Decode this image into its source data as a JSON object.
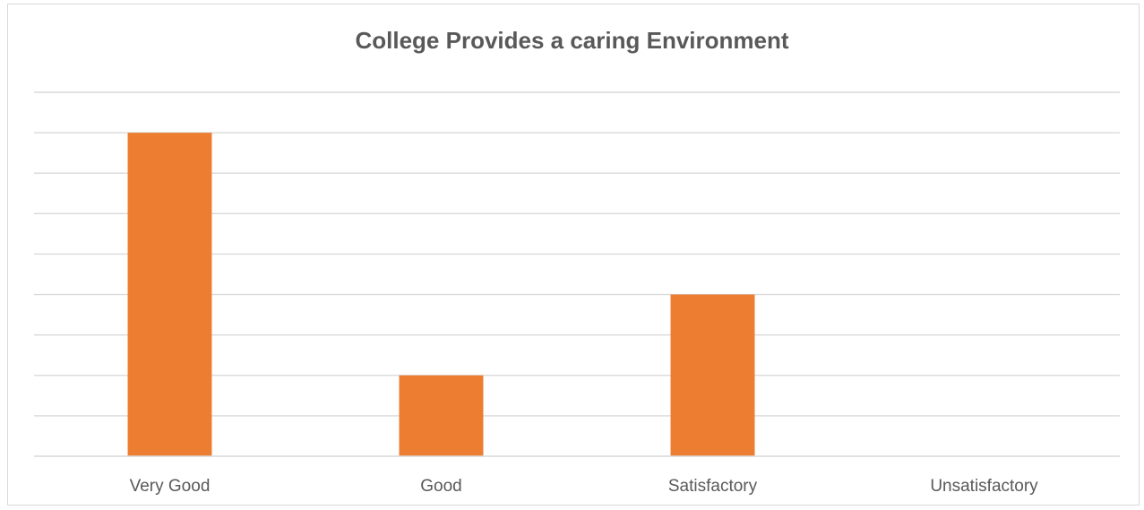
{
  "chart_data": {
    "type": "bar",
    "title": "College Provides a caring Environment",
    "categories": [
      "Very Good",
      "Good",
      "Satisfactory",
      "Unsatisfactory"
    ],
    "values": [
      8,
      2,
      4,
      0
    ],
    "ylim": [
      0,
      9
    ],
    "ytick_step": 1,
    "y_tick_labels_shown": false,
    "grid": true,
    "legend": "none",
    "bar_color": "#ED7D31",
    "xlabel": "",
    "ylabel": ""
  }
}
